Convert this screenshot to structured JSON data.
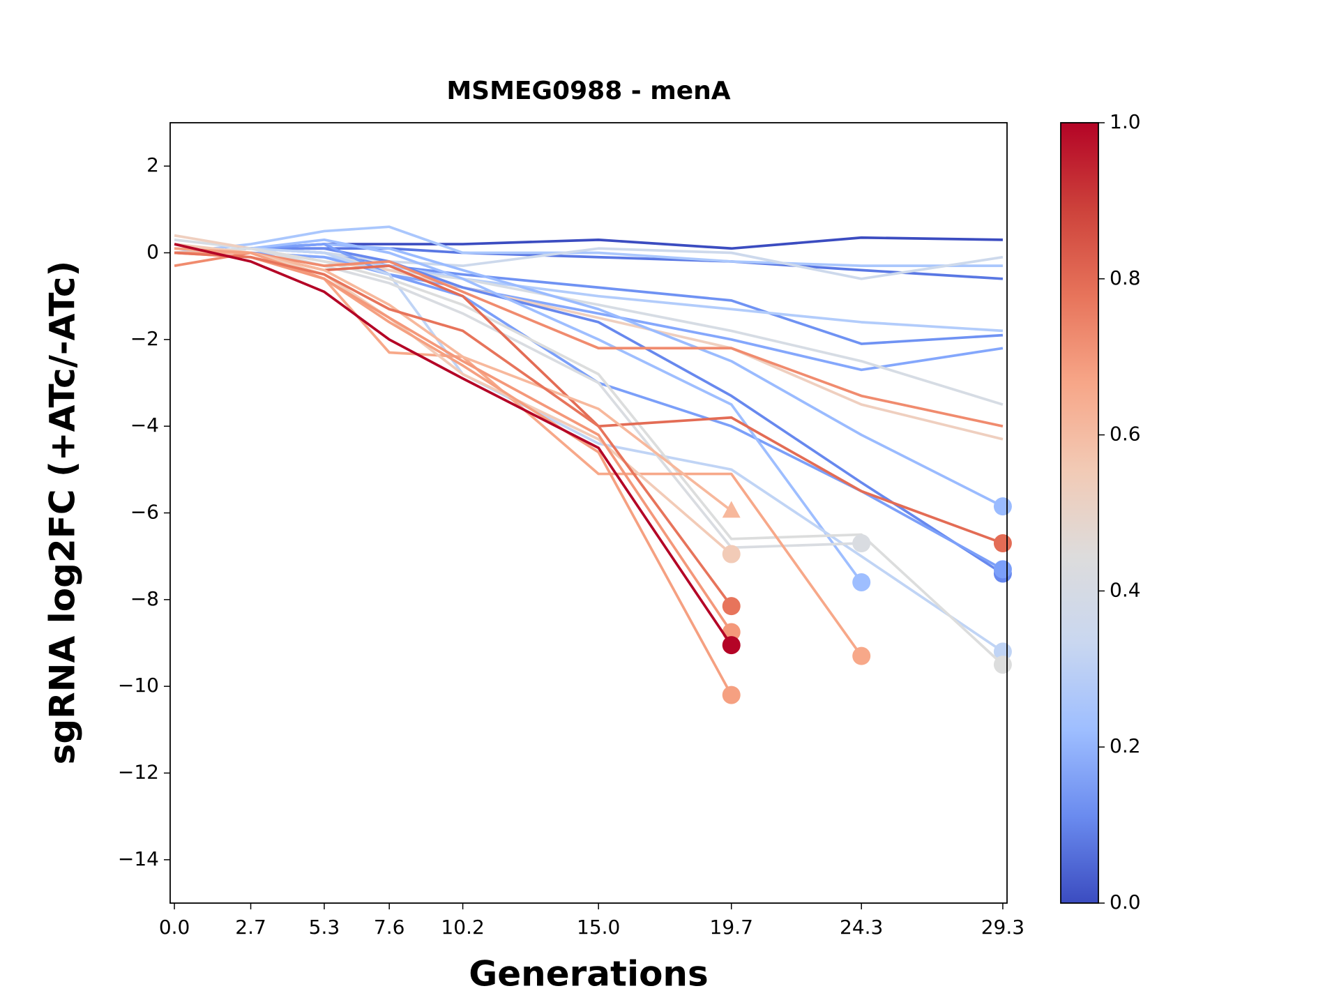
{
  "chart_data": {
    "type": "line",
    "title": "MSMEG0988 - menA",
    "x_label": "Generations",
    "y_label": "sgRNA log2FC (+ATc/-ATc)",
    "x": [
      0.0,
      2.7,
      5.3,
      7.6,
      10.2,
      15.0,
      19.7,
      24.3,
      29.3
    ],
    "xlim": [
      -0.15,
      29.45
    ],
    "xticks": [
      {
        "value": 0.0,
        "label": "0.0"
      },
      2.7,
      5.3,
      7.6,
      10.2,
      {
        "value": 15.0,
        "label": "15.0"
      },
      19.7,
      24.3,
      29.3
    ],
    "ylim": [
      -15,
      3
    ],
    "yticks": [
      {
        "value": -14,
        "label": "−14"
      },
      {
        "value": -12,
        "label": "−12"
      },
      {
        "value": -10,
        "label": "−10"
      },
      {
        "value": -8,
        "label": "−8"
      },
      {
        "value": -6,
        "label": "−6"
      },
      {
        "value": -4,
        "label": "−4"
      },
      {
        "value": -2,
        "label": "−2"
      },
      0,
      2
    ],
    "colorbar": {
      "lim": [
        0,
        1
      ],
      "ticks": [
        {
          "value": 0,
          "label": "0.0"
        },
        {
          "value": 0.2,
          "label": "0.2"
        },
        {
          "value": 0.4,
          "label": "0.4"
        },
        {
          "value": 0.6,
          "label": "0.6"
        },
        {
          "value": 0.8,
          "label": "0.8"
        },
        {
          "value": 1,
          "label": "1.0"
        }
      ],
      "stops": [
        "#3b4cc0",
        "#6a8bef",
        "#9ebeff",
        "#c9d7f0",
        "#dddcdc",
        "#f2cab5",
        "#f7a688",
        "#e7745b",
        "#cd423b",
        "#b40426"
      ]
    },
    "series": [
      {
        "color": "#3b4cc0",
        "marker": "none",
        "values": [
          0,
          0.1,
          0.2,
          0.2,
          0.2,
          0.3,
          0.1,
          0.35,
          0.3
        ]
      },
      {
        "color": "#5977e3",
        "marker": "none",
        "values": [
          0,
          0.1,
          0.1,
          0.1,
          0,
          -0.1,
          -0.2,
          -0.4,
          -0.6
        ]
      },
      {
        "color": "#aac7fd",
        "marker": "none",
        "values": [
          0,
          0.2,
          0.5,
          0.6,
          0,
          0,
          -0.2,
          -0.3,
          -0.3
        ]
      },
      {
        "color": "#6f92f3",
        "marker": "none",
        "values": [
          0,
          0.1,
          0,
          -0.3,
          -0.5,
          -0.8,
          -1.1,
          -2.1,
          -1.9
        ]
      },
      {
        "color": "#cdd9ec",
        "marker": "none",
        "values": [
          0,
          0.1,
          0,
          -0.2,
          -0.3,
          0.1,
          0,
          -0.6,
          -0.1
        ]
      },
      {
        "color": "#b2ccfb",
        "marker": "none",
        "values": [
          0,
          0,
          -0.1,
          -0.3,
          -0.6,
          -1.0,
          -1.3,
          -1.6,
          -1.8
        ]
      },
      {
        "color": "#84a7fc",
        "marker": "none",
        "values": [
          0,
          0,
          -0.1,
          -0.5,
          -0.8,
          -1.4,
          -2.0,
          -2.7,
          -2.2
        ]
      },
      {
        "color": "#d6dce4",
        "marker": "none",
        "values": [
          0.3,
          0.1,
          0,
          -0.4,
          -0.6,
          -1.2,
          -1.8,
          -2.5,
          -3.5
        ]
      },
      {
        "color": "#efcfbf",
        "marker": "none",
        "values": [
          0.4,
          0.1,
          -0.2,
          -0.4,
          -0.8,
          -1.5,
          -2.2,
          -3.5,
          -4.3
        ]
      },
      {
        "color": "#9abbff",
        "marker": "o",
        "values": [
          0,
          0.1,
          0.2,
          0.1,
          -0.4,
          -1.3,
          -2.5,
          -4.2,
          -5.85
        ]
      },
      {
        "color": "#6788ee",
        "marker": "o",
        "values": [
          0,
          0.1,
          0.1,
          -0.2,
          -0.8,
          -1.6,
          -3.3,
          -5.3,
          -7.4
        ]
      },
      {
        "color": "#7b9ff9",
        "marker": "o",
        "values": [
          0,
          0.1,
          0.2,
          -0.5,
          -1.0,
          -3.0,
          -4.0,
          -5.5,
          -7.3
        ]
      },
      {
        "color": "#9ebeff",
        "marker": "o",
        "values": [
          0,
          0.1,
          0.3,
          0,
          -0.6,
          -2.0,
          -3.5,
          -7.6,
          null
        ]
      },
      {
        "color": "#c0d4f5",
        "marker": "o",
        "values": [
          0,
          0.1,
          0,
          -0.5,
          -2.8,
          -4.4,
          -5.0,
          -7.0,
          -9.2
        ]
      },
      {
        "color": "#dcdddd",
        "marker": "o",
        "values": [
          0,
          0.1,
          -0.2,
          -0.6,
          -1.2,
          -2.8,
          -6.6,
          -6.5,
          -9.5
        ]
      },
      {
        "color": "#d9dce1",
        "marker": "o",
        "values": [
          0,
          0.1,
          -0.3,
          -0.7,
          -1.4,
          -3.0,
          -6.8,
          -6.7,
          null
        ]
      },
      {
        "color": "#f08b6e",
        "marker": "none",
        "values": [
          -0.3,
          0,
          -0.3,
          -0.2,
          -0.9,
          -2.2,
          -2.2,
          -3.3,
          -4.0
        ]
      },
      {
        "color": "#e36c55",
        "marker": "o",
        "values": [
          0,
          0,
          -0.4,
          -0.3,
          -1.0,
          -4.0,
          -3.8,
          -5.5,
          -6.7
        ]
      },
      {
        "color": "#f7a889",
        "marker": "o",
        "values": [
          0,
          0,
          -0.6,
          -2.3,
          -2.4,
          -5.1,
          -5.1,
          -9.3,
          null
        ]
      },
      {
        "color": "#f7b89c",
        "marker": "^",
        "values": [
          0.1,
          0,
          -0.4,
          -1.2,
          -2.4,
          -3.6,
          -5.95,
          null,
          null
        ]
      },
      {
        "color": "#f2cbb7",
        "marker": "o",
        "values": [
          0.2,
          0,
          -0.5,
          -1.5,
          -2.8,
          -4.3,
          -6.95,
          null,
          null
        ]
      },
      {
        "color": "#f5a081",
        "marker": "o",
        "values": [
          0.1,
          0,
          -0.6,
          -1.6,
          -2.6,
          -4.6,
          -10.2,
          null,
          null
        ]
      },
      {
        "color": "#f4987a",
        "marker": "o",
        "values": [
          0,
          -0.1,
          -0.6,
          -1.5,
          -2.5,
          -4.2,
          -8.75,
          null,
          null
        ]
      },
      {
        "color": "#e7745b",
        "marker": "o",
        "values": [
          0,
          -0.1,
          -0.5,
          -1.3,
          -1.8,
          -4.0,
          -8.15,
          null,
          null
        ]
      },
      {
        "color": "#b40426",
        "marker": "o",
        "values": [
          0.2,
          -0.2,
          -0.9,
          -2.0,
          -2.9,
          -4.5,
          -9.05,
          null,
          null
        ]
      }
    ]
  }
}
